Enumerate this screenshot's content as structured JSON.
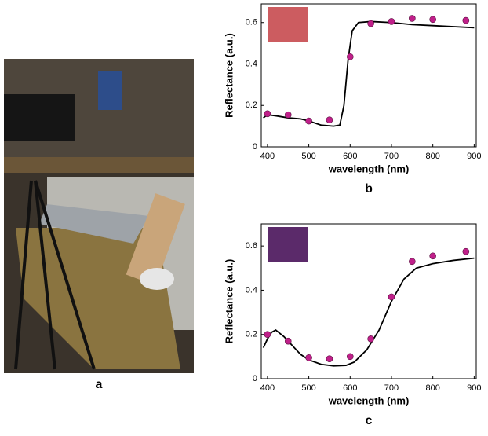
{
  "photo": {
    "label": "a"
  },
  "chart_data": [
    {
      "type": "line",
      "label": "b",
      "xlabel": "wavelength (nm)",
      "ylabel": "Reflectance (a.u.)",
      "xlim": [
        385,
        905
      ],
      "ylim": [
        0,
        0.69
      ],
      "xticks": [
        400,
        500,
        600,
        700,
        800,
        900
      ],
      "yticks": [
        0,
        0.2,
        0.4,
        0.6
      ],
      "swatch_color": "#cc5c60",
      "line_color": "#000000",
      "point_color": "#c0208a",
      "curve_x": [
        390,
        400,
        420,
        450,
        480,
        500,
        530,
        560,
        575,
        585,
        595,
        605,
        620,
        650,
        700,
        750,
        800,
        850,
        900
      ],
      "curve_y": [
        0.14,
        0.155,
        0.15,
        0.14,
        0.135,
        0.125,
        0.105,
        0.1,
        0.105,
        0.2,
        0.42,
        0.56,
        0.6,
        0.605,
        0.6,
        0.59,
        0.585,
        0.58,
        0.575
      ],
      "points_x": [
        400,
        450,
        500,
        550,
        600,
        650,
        700,
        750,
        800,
        880
      ],
      "points_y": [
        0.16,
        0.155,
        0.125,
        0.13,
        0.435,
        0.595,
        0.605,
        0.62,
        0.615,
        0.61
      ]
    },
    {
      "type": "line",
      "label": "c",
      "xlabel": "wavelength (nm)",
      "ylabel": "Reflectance (a.u.)",
      "xlim": [
        385,
        905
      ],
      "ylim": [
        0,
        0.7
      ],
      "xticks": [
        400,
        500,
        600,
        700,
        800,
        900
      ],
      "yticks": [
        0,
        0.2,
        0.4,
        0.6
      ],
      "swatch_color": "#5b2a6a",
      "line_color": "#000000",
      "point_color": "#c0208a",
      "curve_x": [
        390,
        400,
        410,
        420,
        440,
        460,
        480,
        500,
        530,
        560,
        590,
        610,
        640,
        670,
        700,
        730,
        760,
        800,
        850,
        900
      ],
      "curve_y": [
        0.14,
        0.18,
        0.21,
        0.22,
        0.19,
        0.15,
        0.11,
        0.085,
        0.065,
        0.058,
        0.06,
        0.075,
        0.13,
        0.22,
        0.35,
        0.45,
        0.5,
        0.52,
        0.535,
        0.545
      ],
      "points_x": [
        400,
        450,
        500,
        550,
        600,
        650,
        700,
        750,
        800,
        880
      ],
      "points_y": [
        0.2,
        0.17,
        0.095,
        0.09,
        0.1,
        0.18,
        0.37,
        0.53,
        0.555,
        0.575
      ]
    }
  ]
}
